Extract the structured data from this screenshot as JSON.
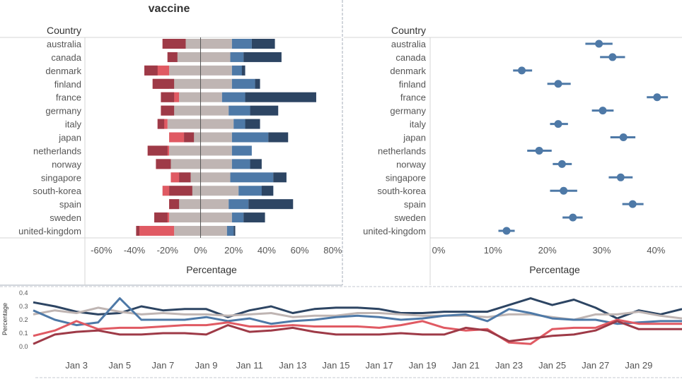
{
  "left_chart": {
    "title": "vaccine",
    "row_header": "Country",
    "x_axis_label": "Percentage"
  },
  "right_chart": {
    "row_header": "Country",
    "x_axis_label": "Percentage"
  },
  "bottom_chart": {
    "y_axis_label": "Percentage"
  },
  "chart_data": [
    {
      "type": "bar",
      "subtype": "diverging-stacked",
      "title": "vaccine",
      "xlabel": "Percentage",
      "xlim": [
        -0.7,
        0.85
      ],
      "xticks": [
        -0.6,
        -0.4,
        -0.2,
        0,
        0.2,
        0.4,
        0.6,
        0.8
      ],
      "xtick_labels": [
        "-60%",
        "-40%",
        "-20%",
        "0%",
        "20%",
        "40%",
        "60%",
        "80%"
      ],
      "grid": false,
      "categories": [
        "australia",
        "canada",
        "denmark",
        "finland",
        "france",
        "germany",
        "italy",
        "japan",
        "netherlands",
        "norway",
        "singapore",
        "south-korea",
        "spain",
        "sweden",
        "united-kingdom"
      ],
      "series": [
        {
          "color": "#9e3a47",
          "values": [
            -0.09,
            -0.14,
            -0.26,
            -0.16,
            -0.16,
            -0.16,
            -0.22,
            -0.04,
            -0.2,
            -0.18,
            -0.06,
            -0.05,
            -0.13,
            -0.2,
            -0.39
          ]
        },
        {
          "color": "#e05a63",
          "values": [
            -0.23,
            -0.2,
            -0.34,
            -0.29,
            -0.24,
            -0.24,
            -0.26,
            -0.1,
            -0.32,
            -0.27,
            -0.13,
            -0.19,
            -0.19,
            -0.28,
            -0.37
          ]
        },
        {
          "color": "#bfb5b3",
          "values": [
            -0.19,
            -0.18,
            -0.19,
            -0.19,
            -0.13,
            -0.17,
            -0.2,
            -0.19,
            -0.19,
            -0.19,
            -0.18,
            -0.23,
            -0.17,
            -0.19,
            -0.16
          ]
        },
        {
          "color": "#bfb5b3",
          "values": [
            0.19,
            0.18,
            0.19,
            0.19,
            0.13,
            0.17,
            0.2,
            0.19,
            0.19,
            0.19,
            0.18,
            0.23,
            0.17,
            0.19,
            0.16
          ]
        },
        {
          "color": "#4e79a7",
          "values": [
            0.31,
            0.26,
            0.27,
            0.33,
            0.27,
            0.3,
            0.27,
            0.41,
            0.31,
            0.3,
            0.44,
            0.44,
            0.29,
            0.26,
            0.2
          ]
        },
        {
          "color": "#2d4563",
          "values": [
            0.45,
            0.49,
            0.25,
            0.36,
            0.7,
            0.47,
            0.36,
            0.53,
            0.31,
            0.37,
            0.52,
            0.37,
            0.56,
            0.39,
            0.21
          ]
        }
      ]
    },
    {
      "type": "scatter",
      "subtype": "point-with-interval",
      "xlabel": "Percentage",
      "xlim": [
        0,
        0.44
      ],
      "xticks": [
        0,
        0.1,
        0.2,
        0.3,
        0.4
      ],
      "xtick_labels": [
        "0%",
        "10%",
        "20%",
        "30%",
        "40%"
      ],
      "grid": false,
      "color": "#4e79a7",
      "categories": [
        "australia",
        "canada",
        "denmark",
        "finland",
        "france",
        "germany",
        "italy",
        "japan",
        "netherlands",
        "norway",
        "singapore",
        "south-korea",
        "spain",
        "sweden",
        "united-kingdom"
      ],
      "values": [
        0.295,
        0.32,
        0.153,
        0.22,
        0.402,
        0.302,
        0.22,
        0.34,
        0.185,
        0.227,
        0.335,
        0.23,
        0.357,
        0.247,
        0.125
      ],
      "lower": [
        0.27,
        0.297,
        0.137,
        0.2,
        0.383,
        0.282,
        0.205,
        0.316,
        0.163,
        0.21,
        0.313,
        0.205,
        0.338,
        0.228,
        0.11
      ],
      "upper": [
        0.32,
        0.343,
        0.172,
        0.243,
        0.422,
        0.322,
        0.238,
        0.362,
        0.208,
        0.245,
        0.357,
        0.255,
        0.377,
        0.265,
        0.14
      ]
    },
    {
      "type": "line",
      "ylabel": "Percentage",
      "ylim": [
        0,
        0.45
      ],
      "yticks": [
        0.0,
        0.1,
        0.2,
        0.3,
        0.4
      ],
      "ytick_labels": [
        "0.0",
        "0.1",
        "0.2",
        "0.3",
        "0.4"
      ],
      "x": [
        "Jan 1",
        "Jan 2",
        "Jan 3",
        "Jan 4",
        "Jan 5",
        "Jan 6",
        "Jan 7",
        "Jan 8",
        "Jan 9",
        "Jan 10",
        "Jan 11",
        "Jan 12",
        "Jan 13",
        "Jan 14",
        "Jan 15",
        "Jan 16",
        "Jan 17",
        "Jan 18",
        "Jan 19",
        "Jan 20",
        "Jan 21",
        "Jan 22",
        "Jan 23",
        "Jan 24",
        "Jan 25",
        "Jan 26",
        "Jan 27",
        "Jan 28",
        "Jan 29",
        "Jan 30",
        "Jan 31"
      ],
      "xtick_labels": [
        "Jan 3",
        "Jan 5",
        "Jan 7",
        "Jan 9",
        "Jan 11",
        "Jan 13",
        "Jan 15",
        "Jan 17",
        "Jan 19",
        "Jan 21",
        "Jan 23",
        "Jan 25",
        "Jan 27",
        "Jan 29"
      ],
      "grid": false,
      "series": [
        {
          "color": "#2d4563",
          "values": [
            0.33,
            0.3,
            0.26,
            0.24,
            0.25,
            0.3,
            0.27,
            0.28,
            0.28,
            0.22,
            0.27,
            0.3,
            0.25,
            0.28,
            0.29,
            0.29,
            0.28,
            0.25,
            0.25,
            0.26,
            0.26,
            0.26,
            0.31,
            0.36,
            0.31,
            0.35,
            0.29,
            0.21,
            0.27,
            0.24,
            0.28
          ]
        },
        {
          "color": "#bfb5b3",
          "values": [
            0.24,
            0.27,
            0.25,
            0.29,
            0.26,
            0.24,
            0.25,
            0.24,
            0.24,
            0.23,
            0.24,
            0.25,
            0.22,
            0.23,
            0.23,
            0.25,
            0.25,
            0.24,
            0.23,
            0.23,
            0.23,
            0.22,
            0.24,
            0.24,
            0.22,
            0.2,
            0.24,
            0.24,
            0.26,
            0.23,
            0.21
          ]
        },
        {
          "color": "#4e79a7",
          "values": [
            0.27,
            0.2,
            0.16,
            0.18,
            0.36,
            0.2,
            0.2,
            0.2,
            0.22,
            0.19,
            0.21,
            0.17,
            0.19,
            0.2,
            0.22,
            0.23,
            0.22,
            0.2,
            0.21,
            0.23,
            0.24,
            0.19,
            0.28,
            0.25,
            0.21,
            0.2,
            0.2,
            0.17,
            0.18,
            0.19,
            0.19
          ]
        },
        {
          "color": "#e05a63",
          "values": [
            0.08,
            0.12,
            0.19,
            0.13,
            0.14,
            0.14,
            0.15,
            0.16,
            0.16,
            0.18,
            0.15,
            0.15,
            0.16,
            0.15,
            0.15,
            0.15,
            0.14,
            0.16,
            0.19,
            0.14,
            0.12,
            0.13,
            0.03,
            0.02,
            0.13,
            0.14,
            0.14,
            0.2,
            0.17,
            0.17,
            0.17
          ]
        },
        {
          "color": "#9e3a47",
          "values": [
            0.02,
            0.09,
            0.11,
            0.12,
            0.09,
            0.09,
            0.1,
            0.1,
            0.09,
            0.16,
            0.11,
            0.12,
            0.14,
            0.11,
            0.09,
            0.09,
            0.09,
            0.1,
            0.09,
            0.09,
            0.14,
            0.12,
            0.04,
            0.06,
            0.08,
            0.09,
            0.12,
            0.19,
            0.13,
            0.13,
            0.13
          ]
        }
      ]
    }
  ]
}
